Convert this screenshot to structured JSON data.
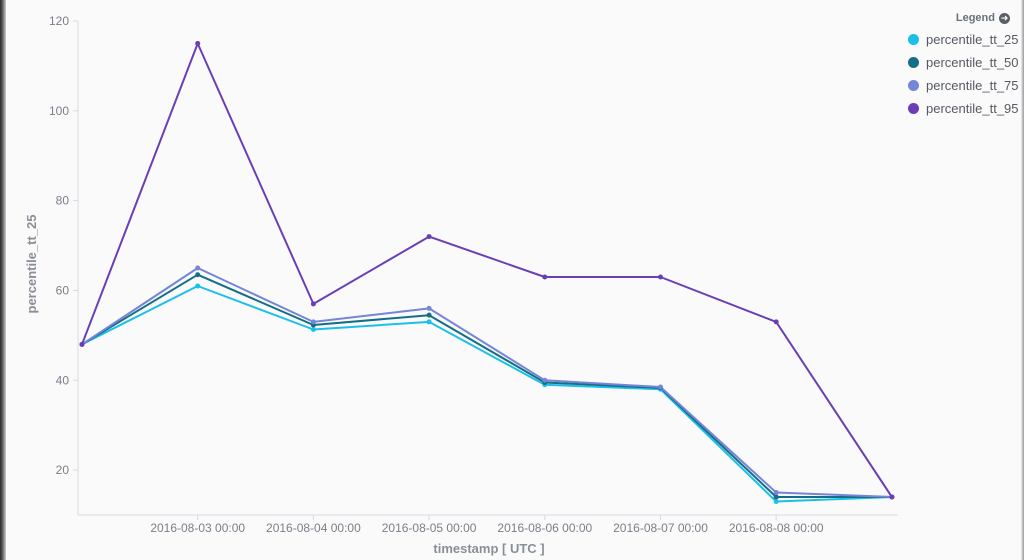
{
  "chart_data": {
    "type": "line",
    "xlabel": "timestamp [ UTC ]",
    "ylabel": "percentile_tt_25",
    "ylim": [
      10,
      120
    ],
    "yticks": [
      20,
      40,
      60,
      80,
      100,
      120
    ],
    "grid": false,
    "legend_placement": "top-right",
    "x": [
      "2016-08-02 00:00",
      "2016-08-03 00:00",
      "2016-08-04 00:00",
      "2016-08-05 00:00",
      "2016-08-06 00:00",
      "2016-08-07 00:00",
      "2016-08-08 00:00",
      "2016-08-09 00:00"
    ],
    "xtick_labels": [
      "2016-08-03 00:00",
      "2016-08-04 00:00",
      "2016-08-05 00:00",
      "2016-08-06 00:00",
      "2016-08-07 00:00",
      "2016-08-08 00:00"
    ],
    "series": [
      {
        "name": "percentile_tt_25",
        "color": "#1cbfe8",
        "values": [
          48,
          61,
          51.3,
          53,
          39,
          38,
          13,
          14
        ]
      },
      {
        "name": "percentile_tt_50",
        "color": "#146e85",
        "values": [
          48,
          63.5,
          52.3,
          54.5,
          39.5,
          38.3,
          14,
          14
        ]
      },
      {
        "name": "percentile_tt_75",
        "color": "#7585d8",
        "values": [
          48,
          65,
          53,
          56,
          40,
          38.5,
          15,
          14
        ]
      },
      {
        "name": "percentile_tt_95",
        "color": "#6a3fb5",
        "values": [
          48,
          115,
          57,
          72,
          63,
          63,
          53,
          14
        ]
      }
    ],
    "axis_color": "#d6d9dd"
  },
  "legend": {
    "title": "Legend",
    "toggle_icon": "arrow-circle-right-icon"
  }
}
